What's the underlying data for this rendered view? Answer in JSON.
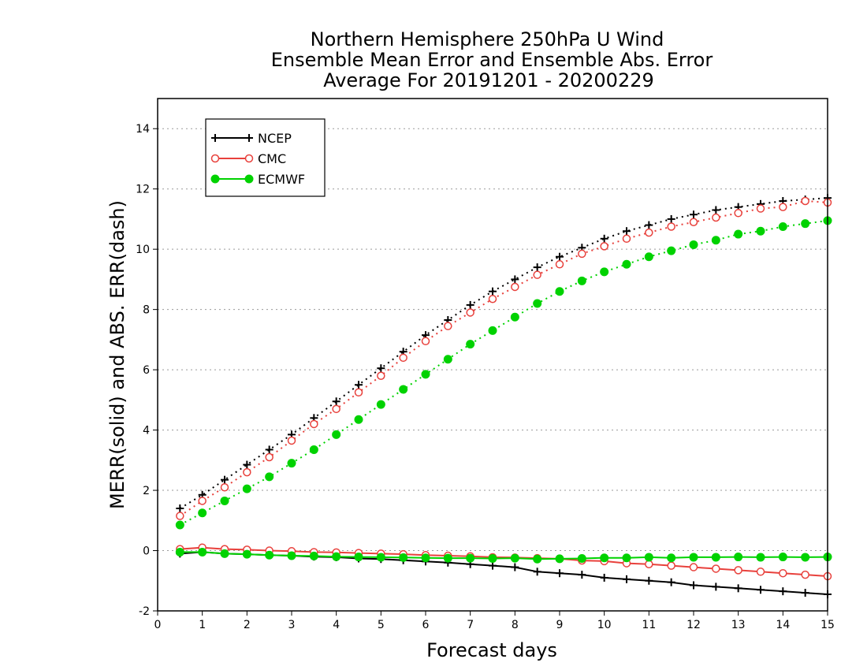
{
  "chart_data": {
    "type": "line",
    "title": [
      "Northern Hemisphere 250hPa U Wind",
      "Ensemble Mean Error and Ensemble Abs. Error",
      "Average For 20191201 - 20200229"
    ],
    "xlabel": "Forecast days",
    "ylabel": "MERR(solid) and ABS. ERR(dash)",
    "xlim": [
      0,
      15
    ],
    "ylim": [
      -2,
      15
    ],
    "x_ticks": [
      "0",
      "1",
      "2",
      "3",
      "4",
      "5",
      "6",
      "7",
      "8",
      "9",
      "10",
      "11",
      "12",
      "13",
      "14",
      "15"
    ],
    "y_ticks": [
      "-2",
      "0",
      "2",
      "4",
      "6",
      "8",
      "10",
      "12",
      "14"
    ],
    "grid": "horizontal dotted",
    "legend_position": "top-left",
    "x": [
      0.5,
      1,
      1.5,
      2,
      2.5,
      3,
      3.5,
      4,
      4.5,
      5,
      5.5,
      6,
      6.5,
      7,
      7.5,
      8,
      8.5,
      9,
      9.5,
      10,
      10.5,
      11,
      11.5,
      12,
      12.5,
      13,
      13.5,
      14,
      14.5,
      15
    ],
    "series": [
      {
        "name": "NCEP",
        "color": "#000000",
        "marker": "plus",
        "mean_error": [
          -0.1,
          -0.05,
          -0.1,
          -0.12,
          -0.15,
          -0.17,
          -0.2,
          -0.22,
          -0.26,
          -0.28,
          -0.32,
          -0.36,
          -0.4,
          -0.45,
          -0.5,
          -0.55,
          -0.7,
          -0.75,
          -0.8,
          -0.9,
          -0.95,
          -1.0,
          -1.05,
          -1.15,
          -1.2,
          -1.25,
          -1.3,
          -1.35,
          -1.4,
          -1.45
        ],
        "abs_error": [
          1.4,
          1.85,
          2.35,
          2.85,
          3.35,
          3.85,
          4.4,
          4.95,
          5.5,
          6.05,
          6.6,
          7.15,
          7.65,
          8.15,
          8.6,
          9.0,
          9.4,
          9.75,
          10.05,
          10.35,
          10.6,
          10.8,
          11.0,
          11.15,
          11.3,
          11.4,
          11.5,
          11.6,
          11.65,
          11.7
        ]
      },
      {
        "name": "CMC",
        "color": "#e8413c",
        "marker": "open-circle",
        "mean_error": [
          0.05,
          0.1,
          0.05,
          0.03,
          0.0,
          -0.02,
          -0.05,
          -0.06,
          -0.08,
          -0.1,
          -0.12,
          -0.15,
          -0.17,
          -0.19,
          -0.22,
          -0.23,
          -0.25,
          -0.27,
          -0.33,
          -0.35,
          -0.42,
          -0.45,
          -0.5,
          -0.55,
          -0.6,
          -0.65,
          -0.7,
          -0.75,
          -0.8,
          -0.85
        ],
        "abs_error": [
          1.15,
          1.65,
          2.1,
          2.6,
          3.1,
          3.65,
          4.2,
          4.7,
          5.25,
          5.8,
          6.4,
          6.95,
          7.45,
          7.9,
          8.35,
          8.75,
          9.15,
          9.5,
          9.85,
          10.1,
          10.35,
          10.55,
          10.75,
          10.9,
          11.05,
          11.2,
          11.35,
          11.4,
          11.6,
          11.55
        ]
      },
      {
        "name": "ECMWF",
        "color": "#00d200",
        "marker": "filled-circle",
        "mean_error": [
          -0.05,
          -0.05,
          -0.1,
          -0.12,
          -0.15,
          -0.17,
          -0.18,
          -0.2,
          -0.21,
          -0.22,
          -0.23,
          -0.24,
          -0.25,
          -0.25,
          -0.26,
          -0.25,
          -0.28,
          -0.27,
          -0.26,
          -0.24,
          -0.24,
          -0.22,
          -0.24,
          -0.22,
          -0.22,
          -0.21,
          -0.22,
          -0.21,
          -0.22,
          -0.21
        ],
        "abs_error": [
          0.85,
          1.25,
          1.65,
          2.05,
          2.45,
          2.9,
          3.35,
          3.85,
          4.35,
          4.85,
          5.35,
          5.85,
          6.35,
          6.85,
          7.3,
          7.75,
          8.2,
          8.6,
          8.95,
          9.25,
          9.5,
          9.75,
          9.95,
          10.15,
          10.3,
          10.5,
          10.6,
          10.75,
          10.85,
          10.95
        ]
      }
    ]
  }
}
